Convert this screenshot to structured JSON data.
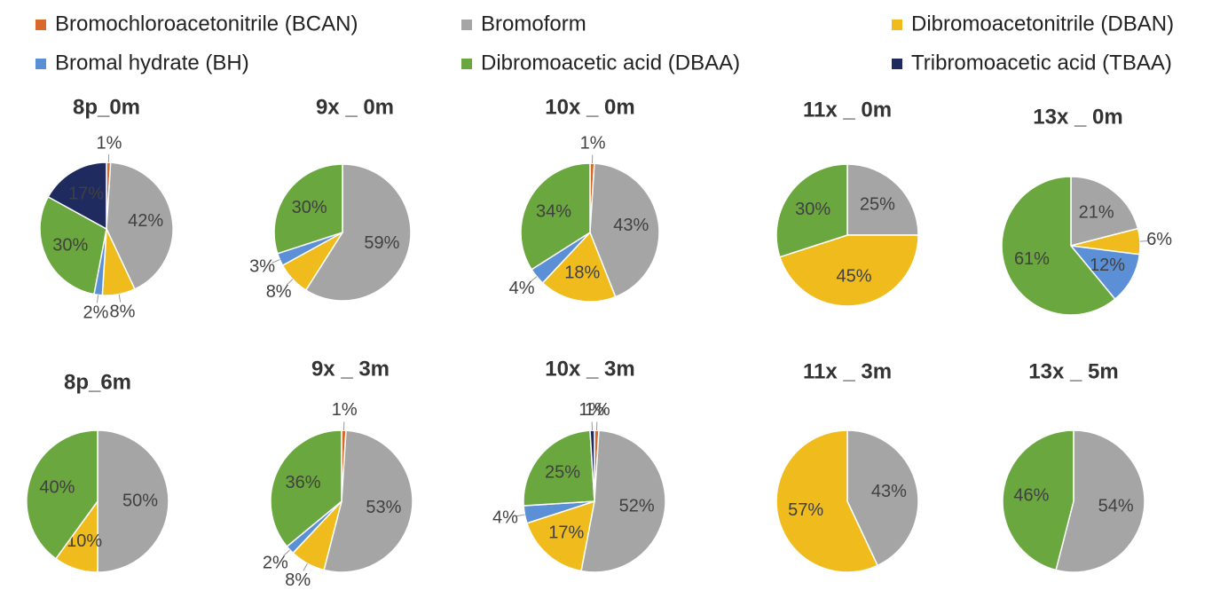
{
  "legend": [
    {
      "name": "Bromochloroacetonitrile (BCAN)",
      "color": "#d9692b"
    },
    {
      "name": "Bromoform",
      "color": "#a5a5a5"
    },
    {
      "name": "Dibromoacetonitrile (DBAN)",
      "color": "#f0bc1d"
    },
    {
      "name": "Bromal hydrate (BH)",
      "color": "#5b8fd6"
    },
    {
      "name": "Dibromoacetic acid (DBAA)",
      "color": "#6aa73e"
    },
    {
      "name": "Tribromoacetic acid (TBAA)",
      "color": "#1f2a5e"
    }
  ],
  "chart_data": [
    {
      "type": "pie",
      "title": "8p_0m",
      "categories": [
        "Bromochloroacetonitrile (BCAN)",
        "Bromoform",
        "Dibromoacetonitrile (DBAN)",
        "Bromal hydrate (BH)",
        "Dibromoacetic acid (DBAA)",
        "Tribromoacetic acid (TBAA)"
      ],
      "values": [
        1,
        42,
        8,
        2,
        30,
        17
      ],
      "value_labels": [
        "1%",
        "42%",
        "8%",
        "2%",
        "30%",
        "17%"
      ],
      "colors": [
        "#d9692b",
        "#a5a5a5",
        "#f0bc1d",
        "#5b8fd6",
        "#6aa73e",
        "#1f2a5e"
      ]
    },
    {
      "type": "pie",
      "title": "9x _ 0m",
      "categories": [
        "Bromoform",
        "Dibromoacetonitrile (DBAN)",
        "Bromal hydrate (BH)",
        "Dibromoacetic acid (DBAA)"
      ],
      "values": [
        59,
        8,
        3,
        30
      ],
      "value_labels": [
        "59%",
        "8%",
        "3%",
        "30%"
      ],
      "colors": [
        "#a5a5a5",
        "#f0bc1d",
        "#5b8fd6",
        "#6aa73e"
      ]
    },
    {
      "type": "pie",
      "title": "10x _ 0m",
      "categories": [
        "Bromochloroacetonitrile (BCAN)",
        "Bromoform",
        "Dibromoacetonitrile (DBAN)",
        "Bromal hydrate (BH)",
        "Dibromoacetic acid (DBAA)"
      ],
      "values": [
        1,
        43,
        18,
        4,
        34
      ],
      "value_labels": [
        "1%",
        "43%",
        "18%",
        "4%",
        "34%"
      ],
      "colors": [
        "#d9692b",
        "#a5a5a5",
        "#f0bc1d",
        "#5b8fd6",
        "#6aa73e"
      ]
    },
    {
      "type": "pie",
      "title": "11x _ 0m",
      "categories": [
        "Bromoform",
        "Dibromoacetonitrile (DBAN)",
        "Dibromoacetic acid (DBAA)"
      ],
      "values": [
        25,
        45,
        30
      ],
      "value_labels": [
        "25%",
        "45%",
        "30%"
      ],
      "colors": [
        "#a5a5a5",
        "#f0bc1d",
        "#6aa73e"
      ]
    },
    {
      "type": "pie",
      "title": "13x _ 0m",
      "categories": [
        "Bromoform",
        "Dibromoacetonitrile (DBAN)",
        "Bromal hydrate (BH)",
        "Dibromoacetic acid (DBAA)"
      ],
      "values": [
        21,
        6,
        12,
        61
      ],
      "value_labels": [
        "21%",
        "6%",
        "12%",
        "61%"
      ],
      "colors": [
        "#a5a5a5",
        "#f0bc1d",
        "#5b8fd6",
        "#6aa73e"
      ]
    },
    {
      "type": "pie",
      "title": "8p_6m",
      "categories": [
        "Bromoform",
        "Dibromoacetonitrile (DBAN)",
        "Dibromoacetic acid (DBAA)"
      ],
      "values": [
        50,
        10,
        40
      ],
      "value_labels": [
        "50%",
        "10%",
        "40%"
      ],
      "colors": [
        "#a5a5a5",
        "#f0bc1d",
        "#6aa73e"
      ]
    },
    {
      "type": "pie",
      "title": "9x _ 3m",
      "categories": [
        "Bromochloroacetonitrile (BCAN)",
        "Bromoform",
        "Dibromoacetonitrile (DBAN)",
        "Bromal hydrate (BH)",
        "Dibromoacetic acid (DBAA)"
      ],
      "values": [
        1,
        53,
        8,
        2,
        36
      ],
      "value_labels": [
        "1%",
        "53%",
        "8%",
        "2%",
        "36%"
      ],
      "colors": [
        "#d9692b",
        "#a5a5a5",
        "#f0bc1d",
        "#5b8fd6",
        "#6aa73e"
      ]
    },
    {
      "type": "pie",
      "title": "10x _ 3m",
      "categories": [
        "Bromochloroacetonitrile (BCAN)",
        "Bromoform",
        "Dibromoacetonitrile (DBAN)",
        "Bromal hydrate (BH)",
        "Dibromoacetic acid (DBAA)",
        "Tribromoacetic acid (TBAA)"
      ],
      "values": [
        1,
        52,
        17,
        4,
        25,
        1
      ],
      "value_labels": [
        "1%",
        "52%",
        "17%",
        "4%",
        "25%",
        "1%"
      ],
      "colors": [
        "#d9692b",
        "#a5a5a5",
        "#f0bc1d",
        "#5b8fd6",
        "#6aa73e",
        "#1f2a5e"
      ]
    },
    {
      "type": "pie",
      "title": "11x _ 3m",
      "categories": [
        "Bromoform",
        "Dibromoacetonitrile (DBAN)"
      ],
      "values": [
        43,
        57
      ],
      "value_labels": [
        "43%",
        "57%"
      ],
      "colors": [
        "#a5a5a5",
        "#f0bc1d"
      ]
    },
    {
      "type": "pie",
      "title": "13x _ 5m",
      "categories": [
        "Bromoform",
        "Dibromoacetic acid (DBAA)"
      ],
      "values": [
        54,
        46
      ],
      "value_labels": [
        "54%",
        "46%"
      ],
      "colors": [
        "#a5a5a5",
        "#6aa73e"
      ]
    }
  ]
}
